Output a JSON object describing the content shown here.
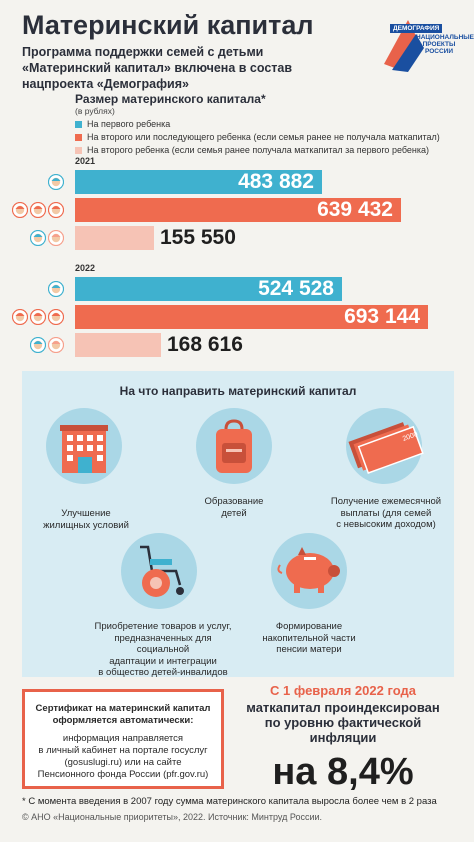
{
  "header": {
    "title": "Материнский капитал",
    "subtitle": "Программа поддержки семей с детьми «Материнский капитал» включена в состав нацпроекта «Демография»"
  },
  "logo": {
    "top": "ДЕМОГРАФИЯ",
    "line1": "НАЦИОНАЛЬНЫЕ",
    "line2": "ПРОЕКТЫ",
    "line3": "РОССИИ"
  },
  "chart_data": {
    "type": "bar",
    "title": "Размер материнского капитала*",
    "unit": "(в рублях)",
    "series": [
      {
        "name": "На первого ребенка",
        "color": "#3fb1cf"
      },
      {
        "name": "На второго или последующего ребенка (если семья ранее не получала маткапитал)",
        "color": "#ef6b4f"
      },
      {
        "name": "На второго ребенка (если семья ранее получала маткапитал за первого ребенка)",
        "color": "#f6c3b5"
      }
    ],
    "groups": [
      {
        "year": "2021",
        "values": [
          483882,
          639432,
          155550
        ],
        "labels": [
          "483 882",
          "639 432",
          "155 550"
        ]
      },
      {
        "year": "2022",
        "values": [
          524528,
          693144,
          168616
        ],
        "labels": [
          "524 528",
          "693 144",
          "168 616"
        ]
      }
    ],
    "xlim": [
      0,
      730000
    ]
  },
  "directions": {
    "title": "На что направить материнский капитал",
    "items": [
      {
        "label_lines": [
          "Улучшение",
          "жилищных условий"
        ],
        "icon": "building-icon"
      },
      {
        "label_lines": [
          "Образование",
          "детей"
        ],
        "icon": "backpack-icon"
      },
      {
        "label_lines": [
          "Получение ежемесячной",
          "выплаты (для семей",
          "с невысоким доходом)"
        ],
        "icon": "money-icon"
      },
      {
        "label_lines": [
          "Приобретение товаров и услуг,",
          "предназначенных для социальной",
          "адаптации и интеграции",
          "в общество детей-инвалидов"
        ],
        "icon": "wheelchair-icon"
      },
      {
        "label_lines": [
          "Формирование",
          "накопительной части",
          "пенсии матери"
        ],
        "icon": "piggy-bank-icon"
      }
    ]
  },
  "certificate": {
    "bold_line1": "Сертификат на материнский капитал",
    "bold_line2": "оформляется автоматически:",
    "lines": [
      "информация направляется",
      "в личный кабинет на портале госуслуг",
      "(gosuslugi.ru) или на сайте",
      "Пенсионного фонда России (pfr.gov.ru)"
    ]
  },
  "indexation": {
    "date": "С 1 февраля 2022 года",
    "lines": [
      "маткапитал проиндексирован",
      "по уровню фактической",
      "инфляции"
    ],
    "big": "на 8,4%"
  },
  "footnote": "* С момента введения в 2007 году сумма материнского капитала выросла более чем в 2 раза",
  "source": "© АНО «Национальные приоритеты», 2022. Источник: Минтруд России."
}
